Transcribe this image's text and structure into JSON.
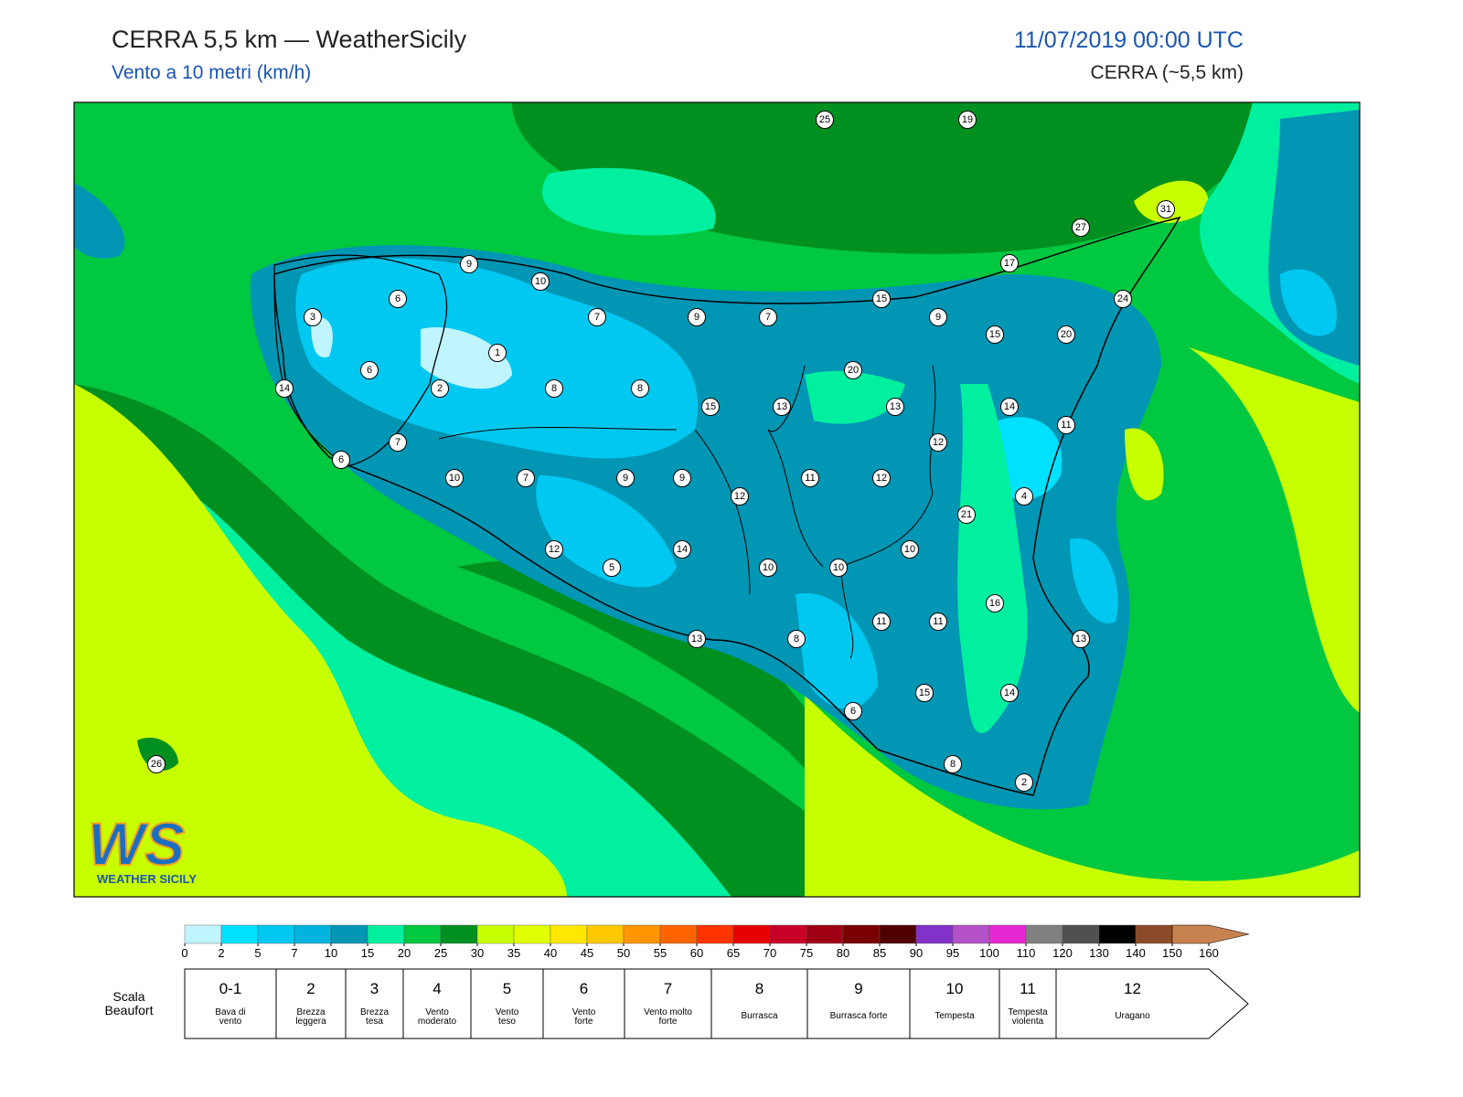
{
  "header": {
    "title": "CERRA 5,5 km — WeatherSicily",
    "subtitle": "Vento a 10 metri (km/h)",
    "date": "11/07/2019 00:00 UTC",
    "model": "CERRA (~5,5 km)"
  },
  "stations": [
    25,
    19,
    31,
    27,
    17,
    9,
    10,
    6,
    15,
    24,
    3,
    7,
    9,
    7,
    9,
    15,
    20,
    1,
    6,
    20,
    14,
    2,
    8,
    8,
    15,
    13,
    13,
    14,
    11,
    7,
    12,
    6,
    10,
    7,
    9,
    9,
    11,
    12,
    12,
    4,
    21,
    14,
    10,
    12,
    5,
    10,
    10,
    16,
    11,
    11,
    13,
    8,
    13,
    15,
    14,
    6,
    8,
    2,
    26
  ],
  "logo": {
    "mark": "WS",
    "text": "WEATHER SICILY"
  },
  "colorbar": {
    "ticks": [
      0,
      2,
      5,
      7,
      10,
      15,
      20,
      25,
      30,
      35,
      40,
      45,
      50,
      55,
      60,
      65,
      70,
      75,
      80,
      85,
      90,
      95,
      100,
      110,
      120,
      130,
      140,
      150,
      160
    ],
    "colors": [
      "#c0f4ff",
      "#00e0ff",
      "#00c8f0",
      "#00b4e0",
      "#0096b4",
      "#00f0a0",
      "#00c840",
      "#009020",
      "#c8ff00",
      "#e0ff00",
      "#ffe800",
      "#ffc800",
      "#ff9600",
      "#ff6400",
      "#ff3200",
      "#e60000",
      "#c80028",
      "#a00014",
      "#780000",
      "#500000",
      "#8232c8",
      "#b450c8",
      "#e628d2",
      "#808080",
      "#505050",
      "#000000",
      "#8c4b28",
      "#c88250"
    ]
  },
  "beaufort": {
    "label": "Scala Beaufort",
    "levels": [
      {
        "level": "0-1",
        "name": "Bava di vento"
      },
      {
        "level": "2",
        "name": "Brezza leggera"
      },
      {
        "level": "3",
        "name": "Brezza tesa"
      },
      {
        "level": "4",
        "name": "Vento moderato"
      },
      {
        "level": "5",
        "name": "Vento teso"
      },
      {
        "level": "6",
        "name": "Vento forte"
      },
      {
        "level": "7",
        "name": "Vento molto forte"
      },
      {
        "level": "8",
        "name": "Burrasca"
      },
      {
        "level": "9",
        "name": "Burrasca forte"
      },
      {
        "level": "10",
        "name": "Tempesta"
      },
      {
        "level": "11",
        "name": "Tempesta violenta"
      },
      {
        "level": "12",
        "name": "Uragano"
      }
    ]
  }
}
